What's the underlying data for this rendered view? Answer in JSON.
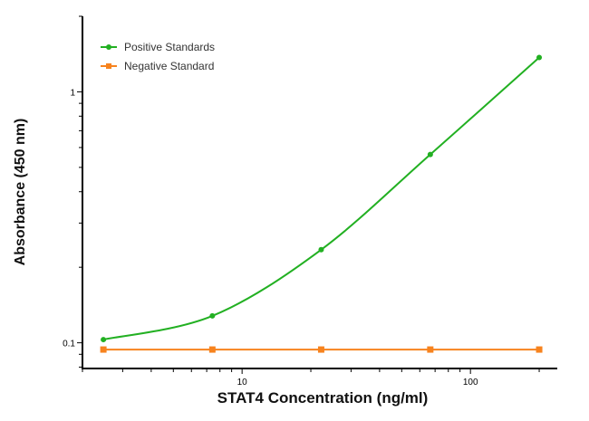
{
  "chart_data": {
    "type": "line",
    "title": "",
    "xlabel": "STAT4 Concentration (ng/ml)",
    "ylabel": "Absorbance (450 nm)",
    "x_scale": "log",
    "y_scale": "log",
    "xlim": [
      2,
      240
    ],
    "ylim": [
      0.079,
      2.0
    ],
    "x_ticks": [
      {
        "value": 10,
        "label": "10"
      },
      {
        "value": 100,
        "label": "100"
      }
    ],
    "y_ticks": [
      {
        "value": 0.1,
        "label": "0.1"
      },
      {
        "value": 1,
        "label": "1"
      }
    ],
    "grid": false,
    "legend_position": "top-left",
    "series": [
      {
        "name": "Positive Standards",
        "color": "#22b022",
        "marker": "circle",
        "fit_curve": true,
        "x": [
          2.47,
          7.41,
          22.2,
          66.7,
          200
        ],
        "y": [
          0.103,
          0.128,
          0.235,
          0.563,
          1.37
        ]
      },
      {
        "name": "Negative Standard",
        "color": "#f7831e",
        "marker": "square",
        "fit_curve": false,
        "x": [
          2.47,
          7.41,
          22.2,
          66.7,
          200
        ],
        "y": [
          0.094,
          0.094,
          0.094,
          0.094,
          0.094
        ]
      }
    ]
  }
}
